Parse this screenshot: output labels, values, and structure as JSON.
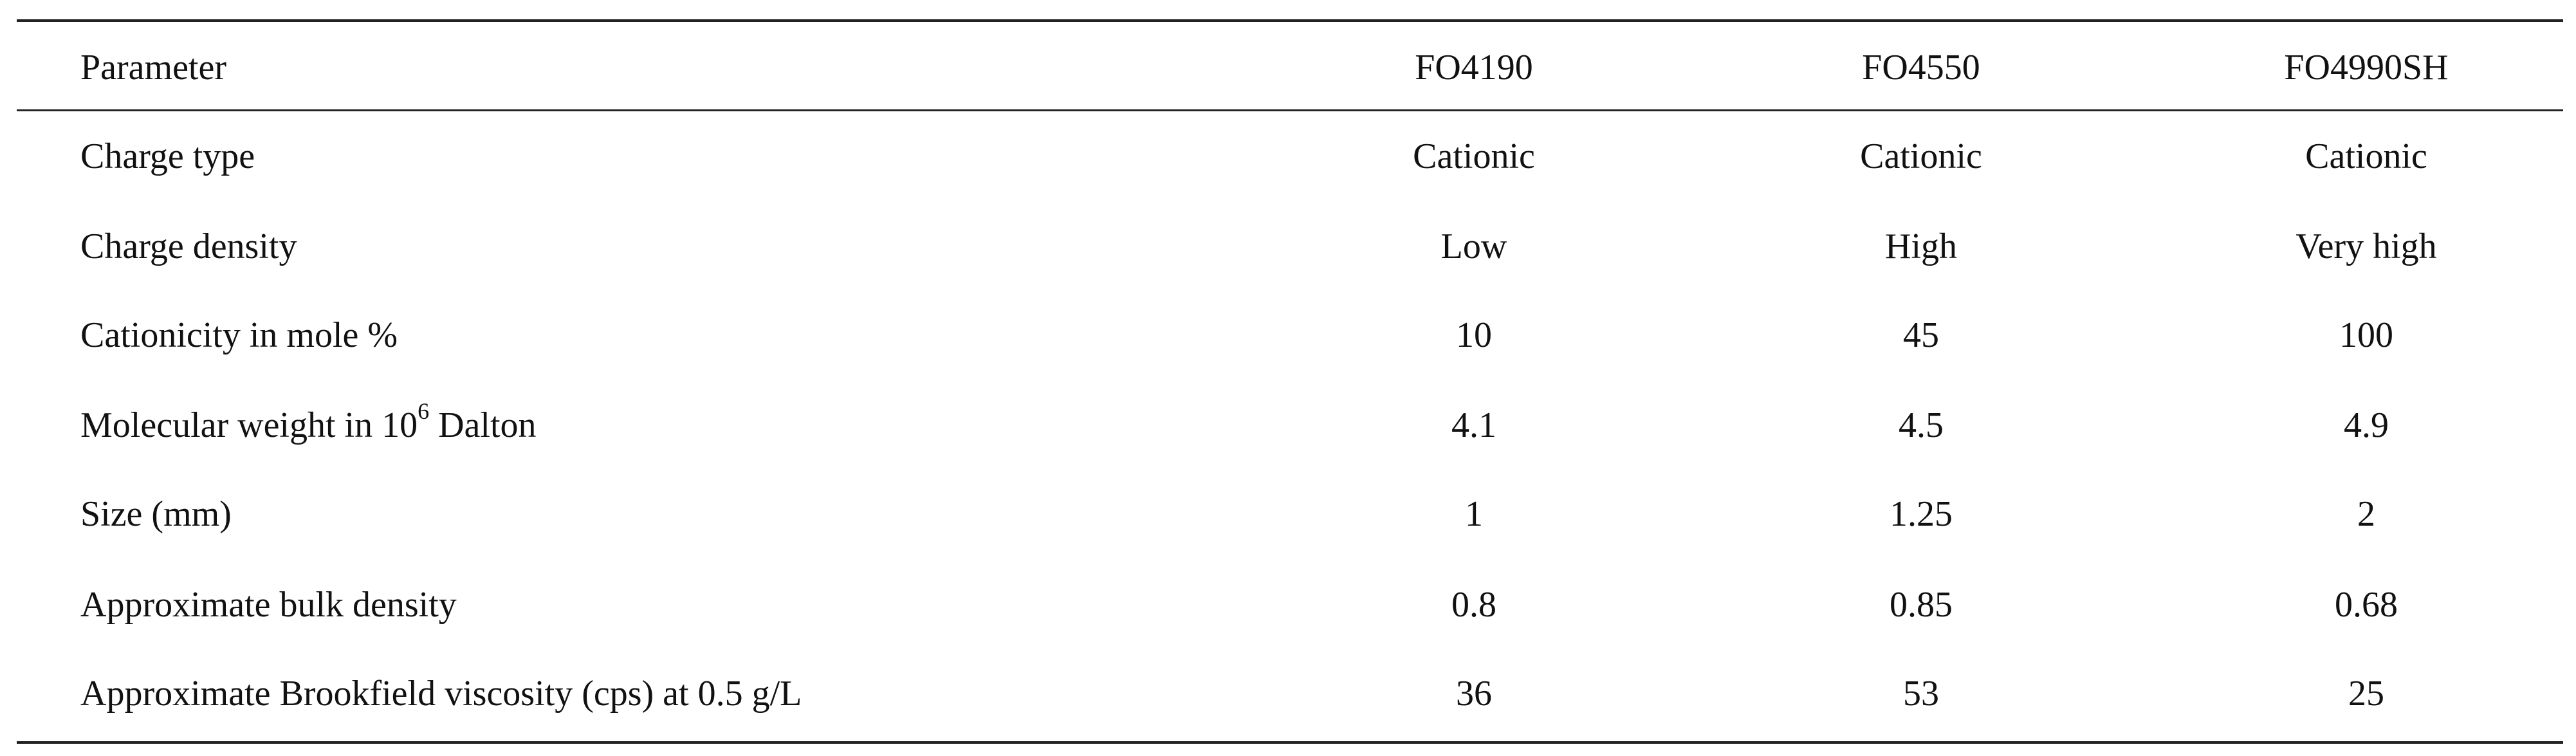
{
  "table": {
    "header": [
      "Parameter",
      "FO4190",
      "FO4550",
      "FO4990SH"
    ],
    "rows": [
      [
        "Charge type",
        "Cationic",
        "Cationic",
        "Cationic"
      ],
      [
        "Charge density",
        "Low",
        "High",
        "Very high"
      ],
      [
        "Cationicity in mole %",
        "10",
        "45",
        "100"
      ],
      [
        [
          "Molecular weight in 10",
          "6",
          " Dalton"
        ],
        "4.1",
        "4.5",
        "4.9"
      ],
      [
        "Size (mm)",
        "1",
        "1.25",
        "2"
      ],
      [
        "Approximate bulk density",
        "0.8",
        "0.85",
        "0.68"
      ],
      [
        "Approximate Brookfield viscosity (cps) at 0.5 g/L",
        "36",
        "53",
        "25"
      ]
    ]
  }
}
